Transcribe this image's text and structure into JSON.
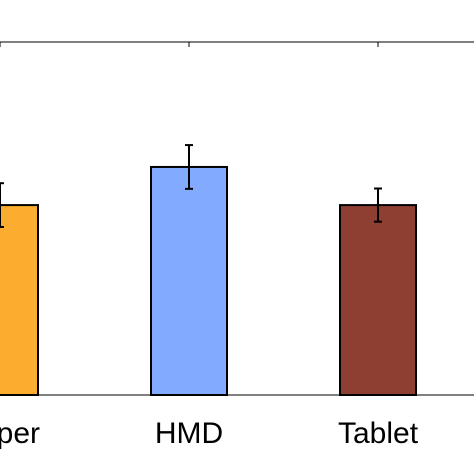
{
  "chart_data": {
    "type": "bar",
    "categories": [
      "Paper",
      "HMD",
      "Tablet"
    ],
    "series": [
      {
        "values": [
          0.538,
          0.646,
          0.538
        ],
        "errors": [
          0.062,
          0.062,
          0.047
        ]
      }
    ],
    "colors": [
      "#fbad30",
      "#82aaff",
      "#8f3f32"
    ],
    "ylim": [
      0,
      1
    ]
  }
}
